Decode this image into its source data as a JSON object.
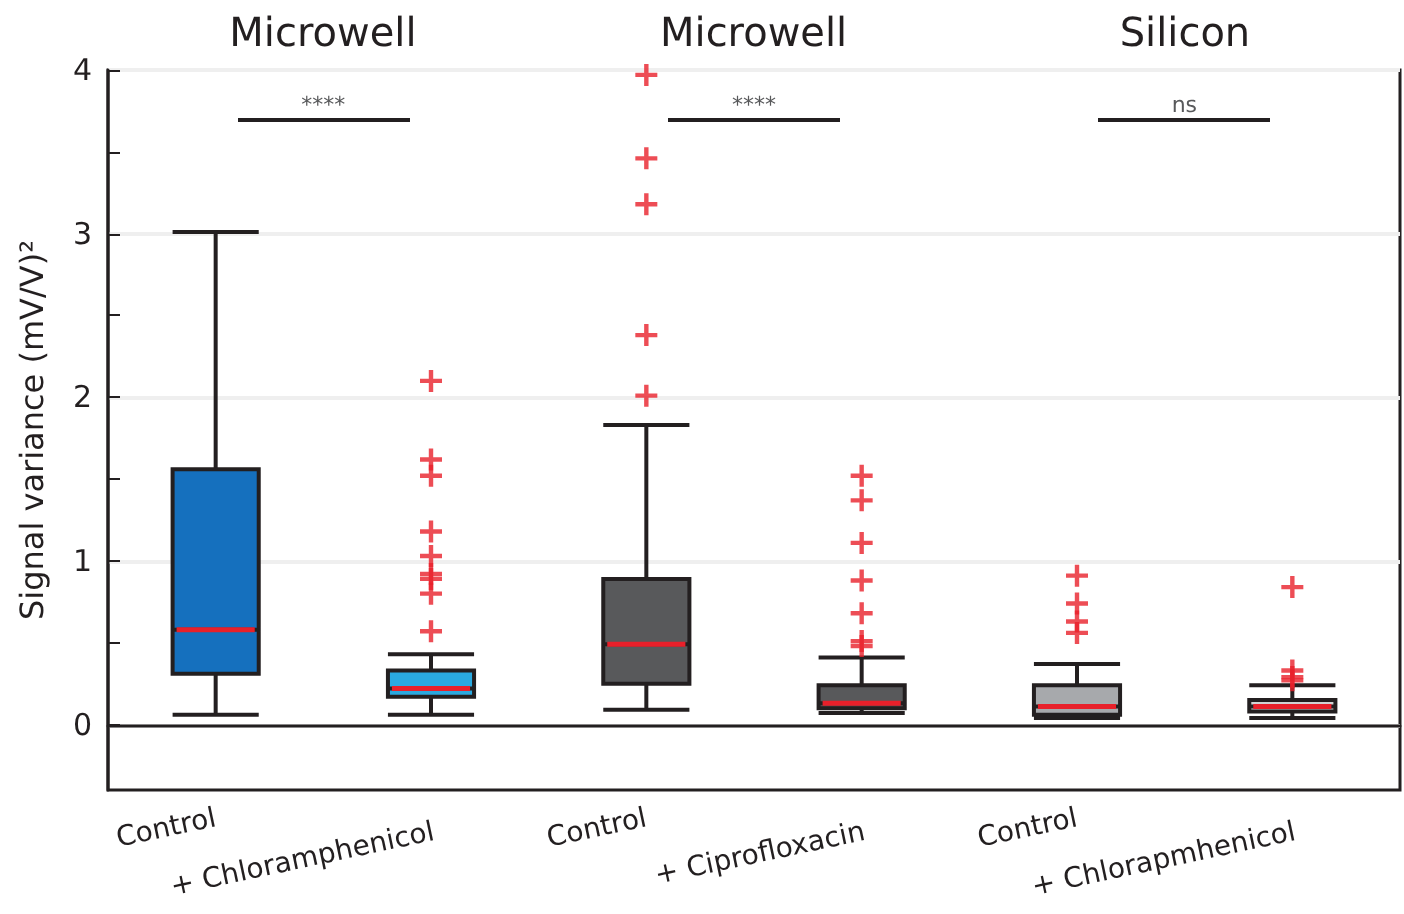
{
  "chart_data": {
    "type": "box",
    "categories": [
      "Control",
      "+ Chloramphenicol",
      "Control",
      "+ Ciprofloxacin",
      "Control",
      "+ Chlorapmhenicol"
    ],
    "boxes": [
      {
        "low": 0.06,
        "q1": 0.31,
        "median": 0.58,
        "q3": 1.56,
        "high": 3.01
      },
      {
        "low": 0.06,
        "q1": 0.17,
        "median": 0.22,
        "q3": 0.33,
        "high": 0.43,
        "outliers": [
          2.1,
          1.62,
          1.52,
          1.18,
          1.03,
          0.92,
          0.89,
          0.8,
          0.57
        ]
      },
      {
        "low": 0.09,
        "q1": 0.25,
        "median": 0.49,
        "q3": 0.89,
        "high": 1.83,
        "outliers": [
          3.97,
          3.46,
          3.18,
          2.38,
          2.01
        ]
      },
      {
        "low": 0.07,
        "q1": 0.1,
        "median": 0.13,
        "q3": 0.24,
        "high": 0.41,
        "outliers": [
          1.52,
          1.37,
          1.11,
          0.88,
          0.68,
          0.51,
          0.48
        ]
      },
      {
        "low": 0.04,
        "q1": 0.06,
        "median": 0.11,
        "q3": 0.24,
        "high": 0.37,
        "outliers": [
          0.91,
          0.74,
          0.63,
          0.56
        ]
      },
      {
        "low": 0.04,
        "q1": 0.08,
        "median": 0.11,
        "q3": 0.15,
        "high": 0.24,
        "outliers": [
          0.84,
          0.33,
          0.29,
          0.27
        ]
      }
    ],
    "colors": [
      "#1570be",
      "#2aa9e0",
      "#58595b",
      "#58595b",
      "#a7a9ac",
      "#d1d3d4"
    ],
    "ylabel": "Signal variance (mV/V)²",
    "ylim": [
      -0.4,
      4
    ],
    "yticks": [
      0,
      {
        "value": 0.5,
        "label": null
      },
      1,
      {
        "value": 1.5,
        "label": null
      },
      2,
      {
        "value": 2.5,
        "label": null
      },
      3,
      {
        "value": 3.5,
        "label": null
      },
      4
    ],
    "grid": "y",
    "annotations": [
      "Microwell",
      "Microwell",
      "Silicon",
      "****",
      "****",
      "ns"
    ]
  }
}
